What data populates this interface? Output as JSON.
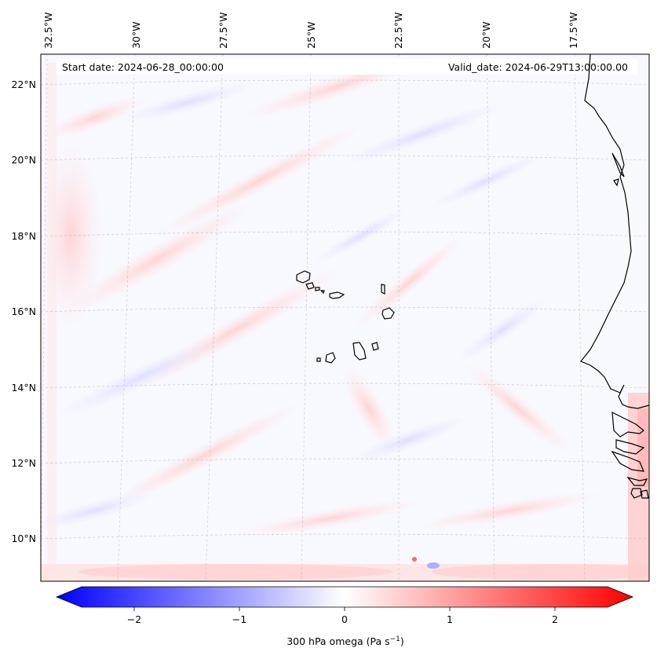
{
  "header": {
    "start_date": "Start date: 2024-06-28_00:00:00",
    "valid_date": "Valid_date: 2024-06-29T13:00:00.00"
  },
  "map": {
    "region": "Cape Verde / West Africa coast",
    "lon_labels": [
      "32.5°W",
      "30°W",
      "27.5°W",
      "25°W",
      "22.5°W",
      "20°W",
      "17.5°W"
    ],
    "lat_labels": [
      "22°N",
      "20°N",
      "18°N",
      "16°N",
      "14°N",
      "12°N",
      "10°N"
    ],
    "field": "300 hPa vertical velocity (omega)"
  },
  "colorbar": {
    "ticks": [
      "−2",
      "−1",
      "0",
      "1",
      "2"
    ],
    "tick_values": [
      -2,
      -1,
      0,
      1,
      2
    ],
    "range": [
      -2.6,
      2.6
    ],
    "label": "300 hPa omega (Pa s",
    "label_sup": "−1",
    "label_end": ")",
    "colors": {
      "neg": "#0000ff",
      "zero": "#ffffff",
      "pos": "#ff0000"
    }
  }
}
